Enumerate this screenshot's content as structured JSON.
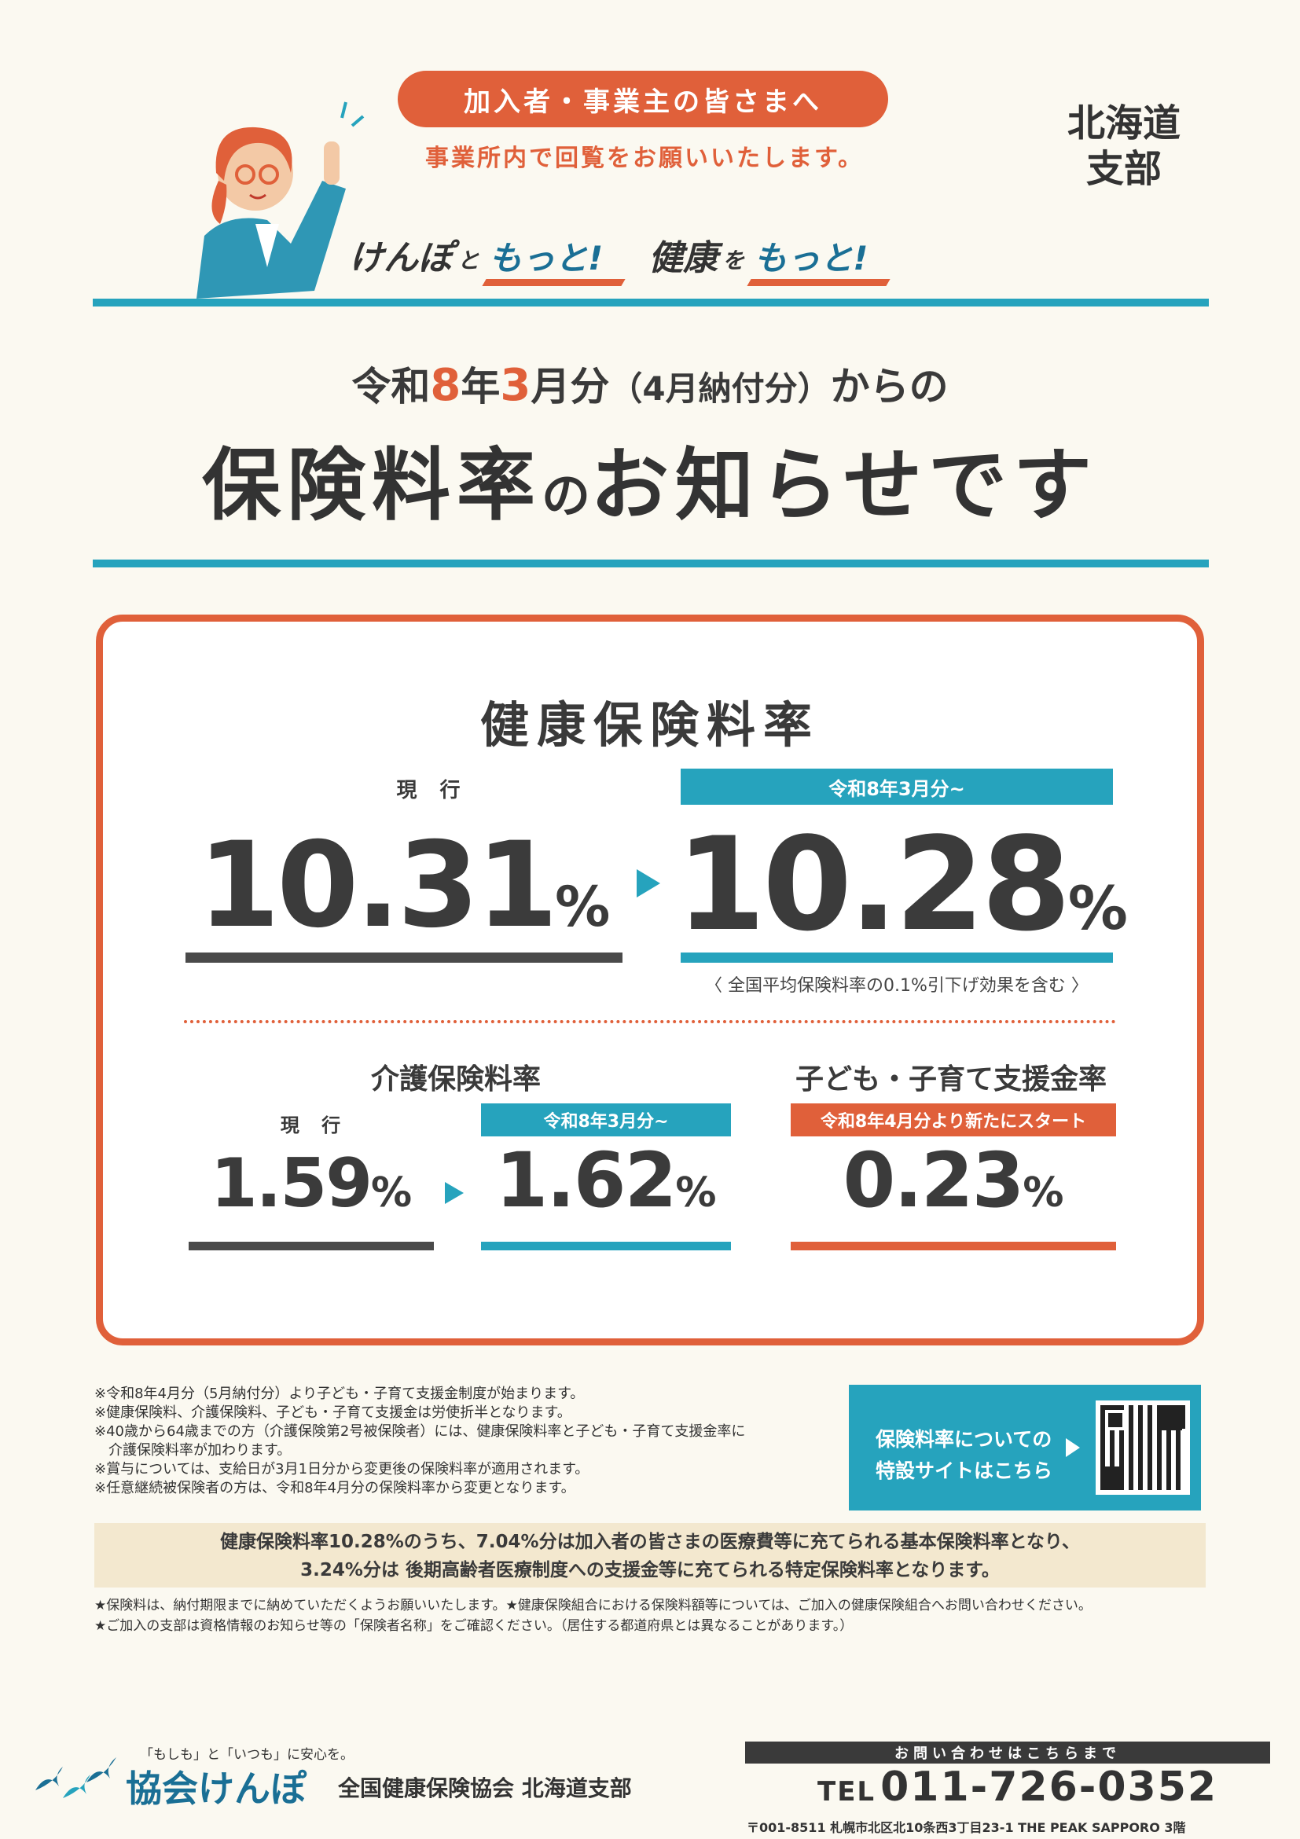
{
  "header": {
    "audience": "加入者・事業主の皆さまへ",
    "circulate": "事業所内で回覧をお願いいたします。",
    "slogan_1": "けんぽ",
    "slogan_2": "と",
    "slogan_3": "もっと!",
    "slogan_4": "健康",
    "slogan_5": "を",
    "slogan_6": "もっと!",
    "branch": "北海道\n支部"
  },
  "title": {
    "sub_prefix": "令和",
    "sub_num1": "8",
    "sub_mid1": "年",
    "sub_num2": "3",
    "sub_mid2": "月分",
    "sub_paren": "（4月納付分）",
    "sub_suffix": "からの",
    "main_a": "保険料率",
    "main_no": "の",
    "main_b": "お知らせです"
  },
  "health": {
    "title": "健康保険料率",
    "current_label": "現 行",
    "current_value": "10.31",
    "new_tag": "令和8年3月分~",
    "new_value": "10.28",
    "pct": "%",
    "note": "〈 全国平均保険料率の0.1%引下げ効果を含む 〉"
  },
  "kaigo": {
    "title": "介護保険料率",
    "current_label": "現 行",
    "current_value": "1.59",
    "new_tag": "令和8年3月分~",
    "new_value": "1.62",
    "pct": "%"
  },
  "kodomo": {
    "title": "子ども・子育て支援金率",
    "tag": "令和8年4月分より新たにスタート",
    "value": "0.23",
    "pct": "%"
  },
  "notes": [
    "※令和8年4月分（5月納付分）より子ども・子育て支援金制度が始まります。",
    "※健康保険料、介護保険料、子ども・子育て支援金は労使折半となります。",
    "※40歳から64歳までの方（介護保険第2号被保険者）には、健康保険料率と子ども・子育て支援金率に",
    "　介護保険料率が加わります。",
    "※賞与については、支給日が3月1日分から変更後の保険料率が適用されます。",
    "※任意継続被保険者の方は、令和8年4月分の保険料率から変更となります。"
  ],
  "site": {
    "line1": "保険料率についての",
    "line2": "特設サイトはこちら"
  },
  "banner": {
    "line1": "健康保険料率10.28%のうち、7.04%分は加入者の皆さまの医療費等に充てられる基本保険料率となり、",
    "line2": "3.24%分は 後期高齢者医療制度への支援金等に充てられる特定保険料率となります。"
  },
  "stars": {
    "line1": "★保険料は、納付期限までに納めていただくようお願いいたします。★健康保険組合における保険料額等については、ご加入の健康保険組合へお問い合わせください。",
    "line2": "★ご加入の支部は資格情報のお知らせ等の「保険者名称」をご確認ください。（居住する都道府県とは異なることがあります。）"
  },
  "footer": {
    "tagline": "「もしも」と「いつも」に安心を。",
    "logo": "協会けんぽ",
    "org": "全国健康保険協会 北海道支部",
    "inquiry": "お問い合わせはこちらまで",
    "tel_label": "TEL",
    "tel": "011-726-0352",
    "address": "〒001-8511 札幌市北区北10条西3丁目23-1 THE PEAK SAPPORO 3階"
  },
  "colors": {
    "accent_orange": "#e0603a",
    "accent_teal": "#26a3bd",
    "brand_blue": "#1a6f95"
  }
}
